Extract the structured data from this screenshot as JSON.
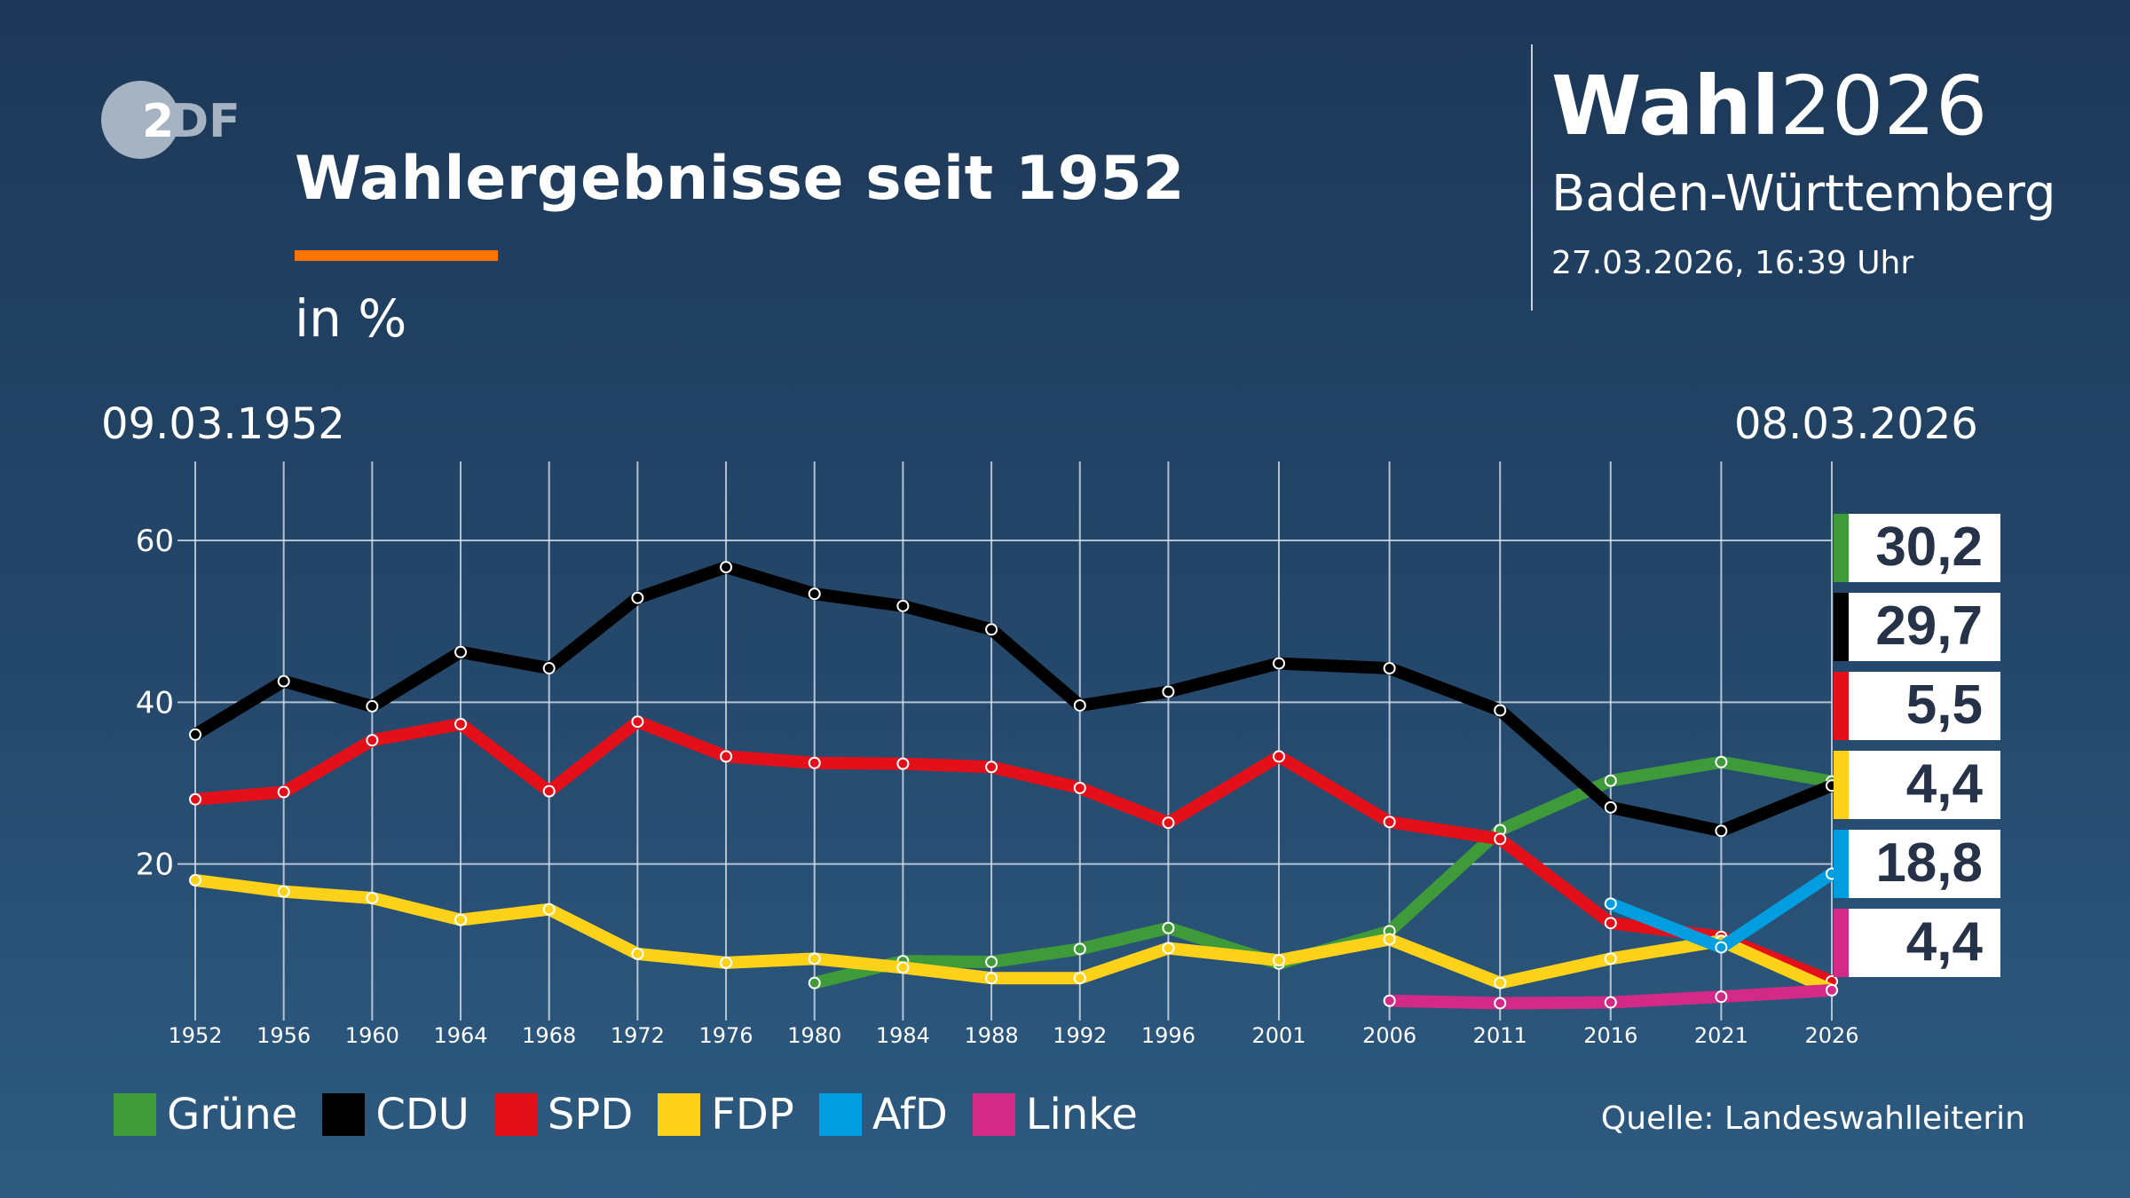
{
  "header": {
    "logo": "ZDF",
    "title": "Wahlergebnisse seit 1952",
    "unit": "in %",
    "brand_bold": "Wahl",
    "brand_year": "2026",
    "region": "Baden-Württemberg",
    "timestamp": "27.03.2026, 16:39 Uhr",
    "accent_color": "#ff7300"
  },
  "date_start": "09.03.1952",
  "date_end": "08.03.2026",
  "source": "Quelle: Landeswahlleiterin",
  "chart_data": {
    "type": "line",
    "x": [
      1952,
      1956,
      1960,
      1964,
      1968,
      1972,
      1976,
      1980,
      1984,
      1988,
      1992,
      1996,
      2001,
      2006,
      2011,
      2016,
      2021,
      2026
    ],
    "x_tick_labels": [
      "1952",
      "1956",
      "1960",
      "1964",
      "1968",
      "1972",
      "1976",
      "1980",
      "1984",
      "1988",
      "1992",
      "1996",
      "2001",
      "2006",
      "2011",
      "2016",
      "2021",
      "2026"
    ],
    "y_ticks": [
      20,
      40,
      60
    ],
    "ylim": [
      0,
      68
    ],
    "grid": true,
    "legend_position": "bottom",
    "series": [
      {
        "name": "Grüne",
        "color": "#3f9a3a",
        "values": [
          null,
          null,
          null,
          null,
          null,
          null,
          null,
          5.3,
          8.0,
          7.9,
          9.5,
          12.1,
          7.7,
          11.7,
          24.2,
          30.3,
          32.6,
          30.2
        ]
      },
      {
        "name": "CDU",
        "color": "#000000",
        "values": [
          36.0,
          42.6,
          39.5,
          46.2,
          44.2,
          52.9,
          56.7,
          53.4,
          51.9,
          49.0,
          39.6,
          41.3,
          44.8,
          44.2,
          39.0,
          27.0,
          24.1,
          29.7
        ]
      },
      {
        "name": "SPD",
        "color": "#e3101a",
        "values": [
          28.0,
          28.9,
          35.3,
          37.3,
          29.0,
          37.6,
          33.3,
          32.5,
          32.4,
          32.0,
          29.4,
          25.1,
          33.3,
          25.2,
          23.1,
          12.7,
          11.0,
          5.5
        ]
      },
      {
        "name": "FDP",
        "color": "#ffd21a",
        "values": [
          18.0,
          16.6,
          15.8,
          13.1,
          14.4,
          8.9,
          7.8,
          8.3,
          7.2,
          5.9,
          5.9,
          9.6,
          8.1,
          10.7,
          5.3,
          8.3,
          10.5,
          4.4
        ]
      },
      {
        "name": "AfD",
        "color": "#009ee0",
        "values": [
          null,
          null,
          null,
          null,
          null,
          null,
          null,
          null,
          null,
          null,
          null,
          null,
          null,
          null,
          null,
          15.1,
          9.7,
          18.8
        ]
      },
      {
        "name": "Linke",
        "color": "#d42a87",
        "values": [
          null,
          null,
          null,
          null,
          null,
          null,
          null,
          null,
          null,
          null,
          null,
          null,
          null,
          3.1,
          2.8,
          2.9,
          3.6,
          4.4
        ]
      }
    ],
    "latest_labels": [
      {
        "party": "Grüne",
        "label": "30,2",
        "color": "#3f9a3a"
      },
      {
        "party": "CDU",
        "label": "29,7",
        "color": "#000000"
      },
      {
        "party": "SPD",
        "label": "5,5",
        "color": "#e3101a"
      },
      {
        "party": "FDP",
        "label": "4,4",
        "color": "#ffd21a"
      },
      {
        "party": "AfD",
        "label": "18,8",
        "color": "#009ee0"
      },
      {
        "party": "Linke",
        "label": "4,4",
        "color": "#d42a87"
      }
    ]
  }
}
